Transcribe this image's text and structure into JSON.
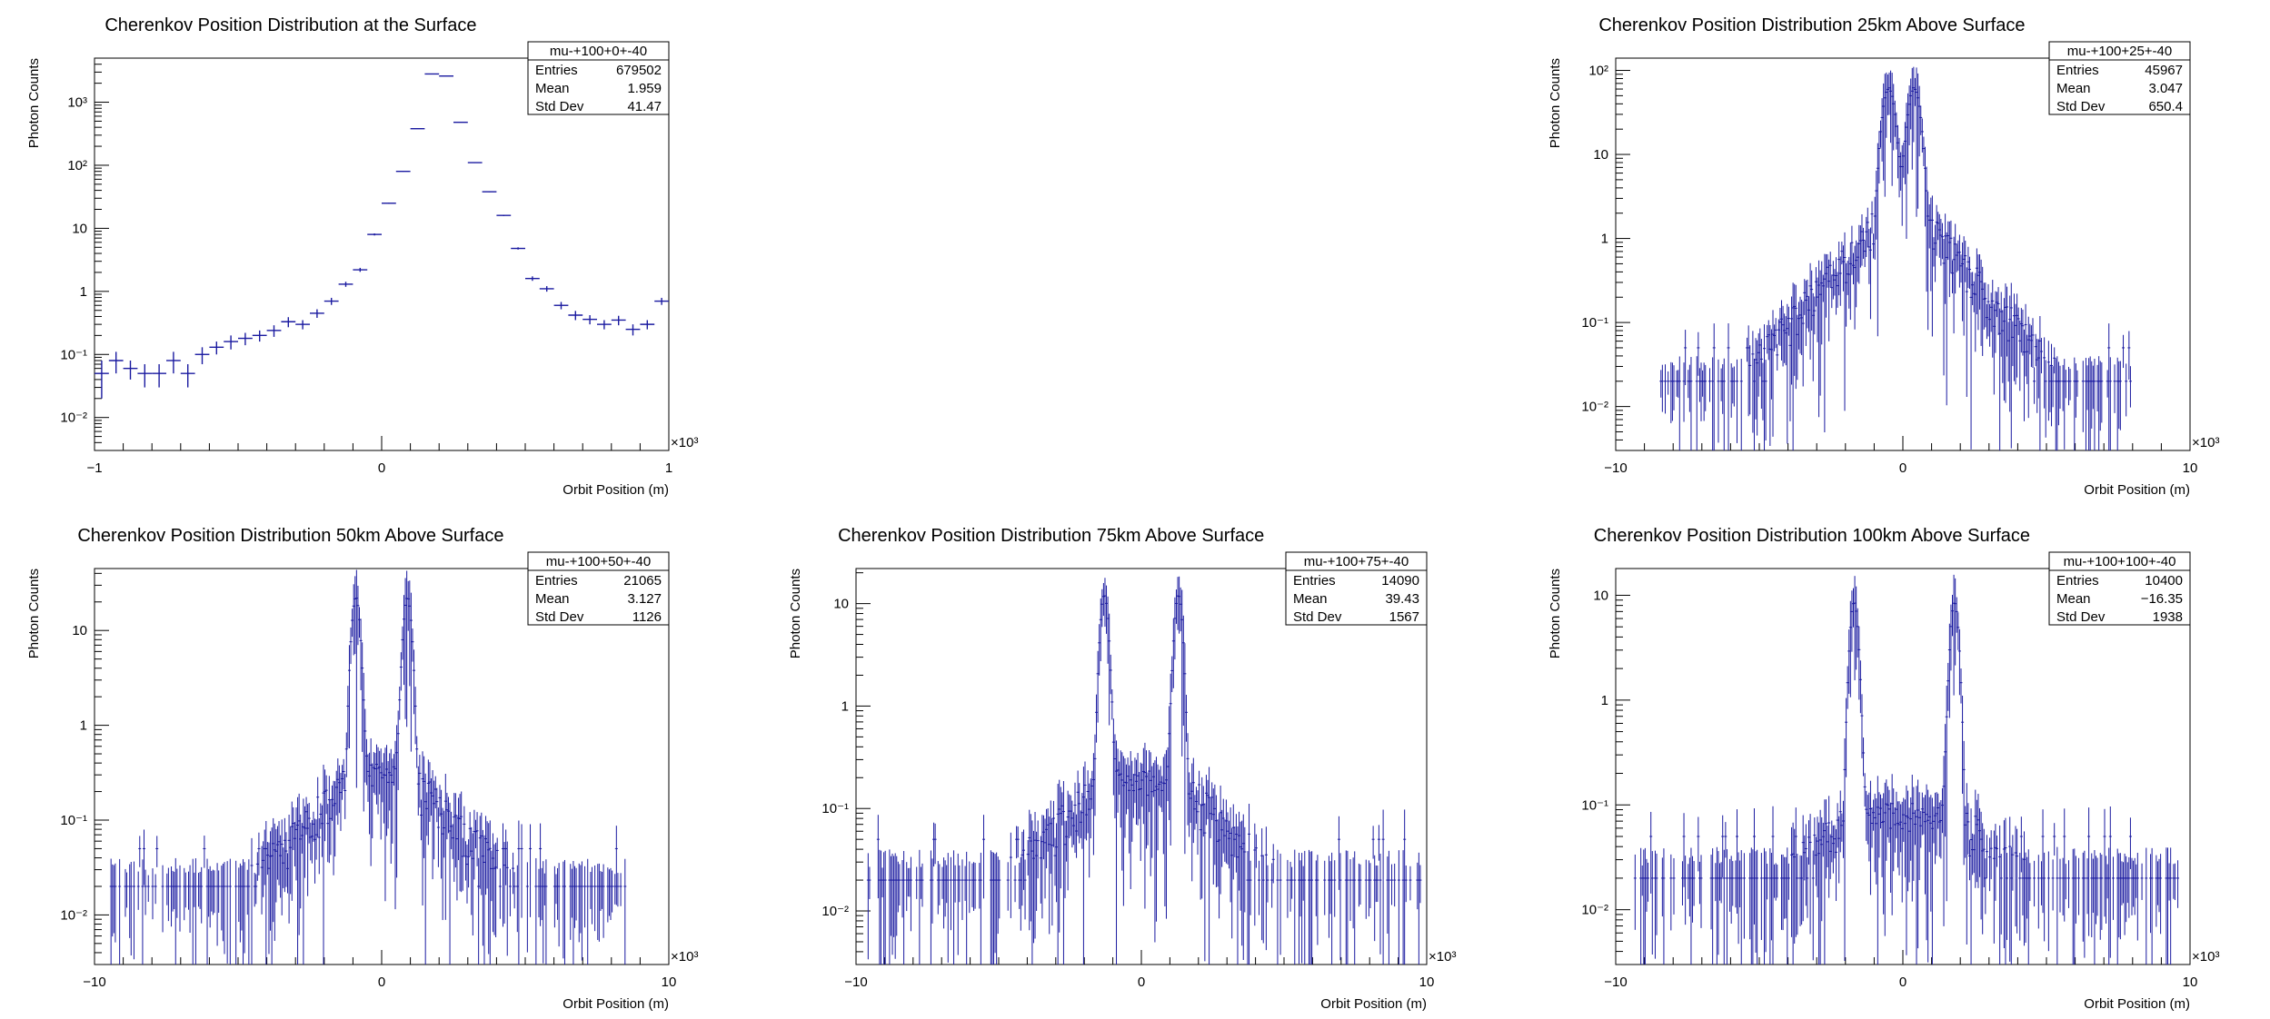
{
  "colors": {
    "series": "#1a1aa0",
    "axis": "#000000",
    "background": "#ffffff"
  },
  "chart_data": [
    {
      "type": "histogram",
      "title": "Cherenkov Position Distribution at the Surface",
      "xlabel": "Orbit Position (m)",
      "ylabel": "Photon Counts",
      "x_multiplier": "×10³",
      "log_y": true,
      "xlim": [
        -1,
        1
      ],
      "ylim": [
        0.003,
        5000
      ],
      "x_ticks": [
        "−1",
        "0",
        "1"
      ],
      "y_ticks": [
        "10⁻²",
        "10⁻¹",
        "1",
        "10",
        "10²",
        "10³"
      ],
      "stats": {
        "name": "mu-+100+0+-40",
        "entries": "679502",
        "mean": "1.959",
        "std_dev": "41.47"
      },
      "bins": [
        [
          -0.975,
          0.05,
          0.03
        ],
        [
          -0.925,
          0.08,
          0.03
        ],
        [
          -0.875,
          0.06,
          0.02
        ],
        [
          -0.825,
          0.05,
          0.02
        ],
        [
          -0.775,
          0.05,
          0.02
        ],
        [
          -0.725,
          0.08,
          0.03
        ],
        [
          -0.675,
          0.05,
          0.02
        ],
        [
          -0.625,
          0.1,
          0.03
        ],
        [
          -0.575,
          0.13,
          0.03
        ],
        [
          -0.525,
          0.16,
          0.04
        ],
        [
          -0.475,
          0.18,
          0.04
        ],
        [
          -0.425,
          0.2,
          0.04
        ],
        [
          -0.375,
          0.24,
          0.05
        ],
        [
          -0.325,
          0.33,
          0.06
        ],
        [
          -0.275,
          0.3,
          0.05
        ],
        [
          -0.225,
          0.45,
          0.07
        ],
        [
          -0.175,
          0.7,
          0.09
        ],
        [
          -0.125,
          1.3,
          0.12
        ],
        [
          -0.075,
          2.2,
          0.16
        ],
        [
          -0.025,
          8,
          0.3
        ],
        [
          0.025,
          25,
          0.5
        ],
        [
          0.075,
          80,
          1
        ],
        [
          0.125,
          380,
          2
        ],
        [
          0.175,
          2800,
          6
        ],
        [
          0.225,
          2600,
          6
        ],
        [
          0.275,
          480,
          3
        ],
        [
          0.325,
          110,
          1
        ],
        [
          0.375,
          38,
          0.6
        ],
        [
          0.425,
          16,
          0.4
        ],
        [
          0.475,
          4.8,
          0.2
        ],
        [
          0.525,
          1.6,
          0.13
        ],
        [
          0.575,
          1.1,
          0.11
        ],
        [
          0.625,
          0.6,
          0.08
        ],
        [
          0.675,
          0.42,
          0.07
        ],
        [
          0.725,
          0.36,
          0.06
        ],
        [
          0.775,
          0.3,
          0.05
        ],
        [
          0.825,
          0.35,
          0.06
        ],
        [
          0.875,
          0.25,
          0.05
        ],
        [
          0.925,
          0.3,
          0.05
        ],
        [
          0.975,
          0.7,
          0.09
        ]
      ]
    },
    {
      "type": "histogram",
      "title": "Cherenkov Position Distribution 25km Above Surface",
      "xlabel": "Orbit Position (m)",
      "ylabel": "Photon Counts",
      "x_multiplier": "×10³",
      "log_y": true,
      "xlim": [
        -10,
        10
      ],
      "ylim": [
        0.003,
        140
      ],
      "x_ticks": [
        "−10",
        "0",
        "10"
      ],
      "y_ticks": [
        "10⁻²",
        "10⁻¹",
        "1",
        "10",
        "10²"
      ],
      "stats": {
        "name": "mu-+100+25+-40",
        "entries": "45967",
        "mean": "3.047",
        "std_dev": "650.4"
      },
      "shape": {
        "model": "double_peak",
        "peaks": [
          -0.5,
          0.4
        ],
        "peak_height": 60,
        "peak_width": 0.18,
        "core": 2.2,
        "core_width": 0.6,
        "tail_scale": 1.1,
        "floor": 0.02,
        "range": [
          -8.5,
          8
        ]
      }
    },
    {
      "type": "histogram",
      "title": "Cherenkov Position Distribution 50km Above Surface",
      "xlabel": "Orbit Position (m)",
      "ylabel": "Photon Counts",
      "x_multiplier": "×10³",
      "log_y": true,
      "xlim": [
        -10,
        10
      ],
      "ylim": [
        0.003,
        45
      ],
      "x_ticks": [
        "−10",
        "0",
        "10"
      ],
      "y_ticks": [
        "10⁻²",
        "10⁻¹",
        "1",
        "10"
      ],
      "stats": {
        "name": "mu-+100+50+-40",
        "entries": "21065",
        "mean": "3.127",
        "std_dev": "1126"
      },
      "shape": {
        "model": "double_peak",
        "peaks": [
          -0.9,
          0.9
        ],
        "peak_height": 22,
        "peak_width": 0.12,
        "core": 0.3,
        "core_width": 1.0,
        "tail_scale": 1.4,
        "floor": 0.02,
        "range": [
          -9.5,
          8.5
        ]
      }
    },
    {
      "type": "histogram",
      "title": "Cherenkov Position Distribution 75km Above Surface",
      "xlabel": "Orbit Position (m)",
      "ylabel": "Photon Counts",
      "x_multiplier": "×10³",
      "log_y": true,
      "xlim": [
        -10,
        10
      ],
      "ylim": [
        0.003,
        22
      ],
      "x_ticks": [
        "−10",
        "0",
        "10"
      ],
      "y_ticks": [
        "10⁻²",
        "10⁻¹",
        "1",
        "10"
      ],
      "stats": {
        "name": "mu-+100+75+-40",
        "entries": "14090",
        "mean": "39.43",
        "std_dev": "1567"
      },
      "shape": {
        "model": "double_peak",
        "peaks": [
          -1.3,
          1.3
        ],
        "peak_height": 12,
        "peak_width": 0.12,
        "core": 0.18,
        "core_width": 1.4,
        "tail_scale": 1.6,
        "floor": 0.02,
        "range": [
          -9.6,
          9.8
        ]
      }
    },
    {
      "type": "histogram",
      "title": "Cherenkov Position Distribution 100km Above Surface",
      "xlabel": "Orbit Position (m)",
      "ylabel": "Photon Counts",
      "x_multiplier": "×10³",
      "log_y": true,
      "xlim": [
        -10,
        10
      ],
      "ylim": [
        0.003,
        18
      ],
      "x_ticks": [
        "−10",
        "0",
        "10"
      ],
      "y_ticks": [
        "10⁻²",
        "10⁻¹",
        "1",
        "10"
      ],
      "stats": {
        "name": "mu-+100+100+-40",
        "entries": "10400",
        "mean": "−16.35",
        "std_dev": "1938"
      },
      "shape": {
        "model": "double_peak",
        "peaks": [
          -1.7,
          1.8
        ],
        "peak_height": 8.5,
        "peak_width": 0.12,
        "core": 0.08,
        "core_width": 1.8,
        "tail_scale": 1.8,
        "floor": 0.02,
        "range": [
          -9.4,
          9.6
        ]
      }
    }
  ],
  "stat_labels": {
    "entries": "Entries",
    "mean": "Mean",
    "std_dev": "Std Dev"
  }
}
